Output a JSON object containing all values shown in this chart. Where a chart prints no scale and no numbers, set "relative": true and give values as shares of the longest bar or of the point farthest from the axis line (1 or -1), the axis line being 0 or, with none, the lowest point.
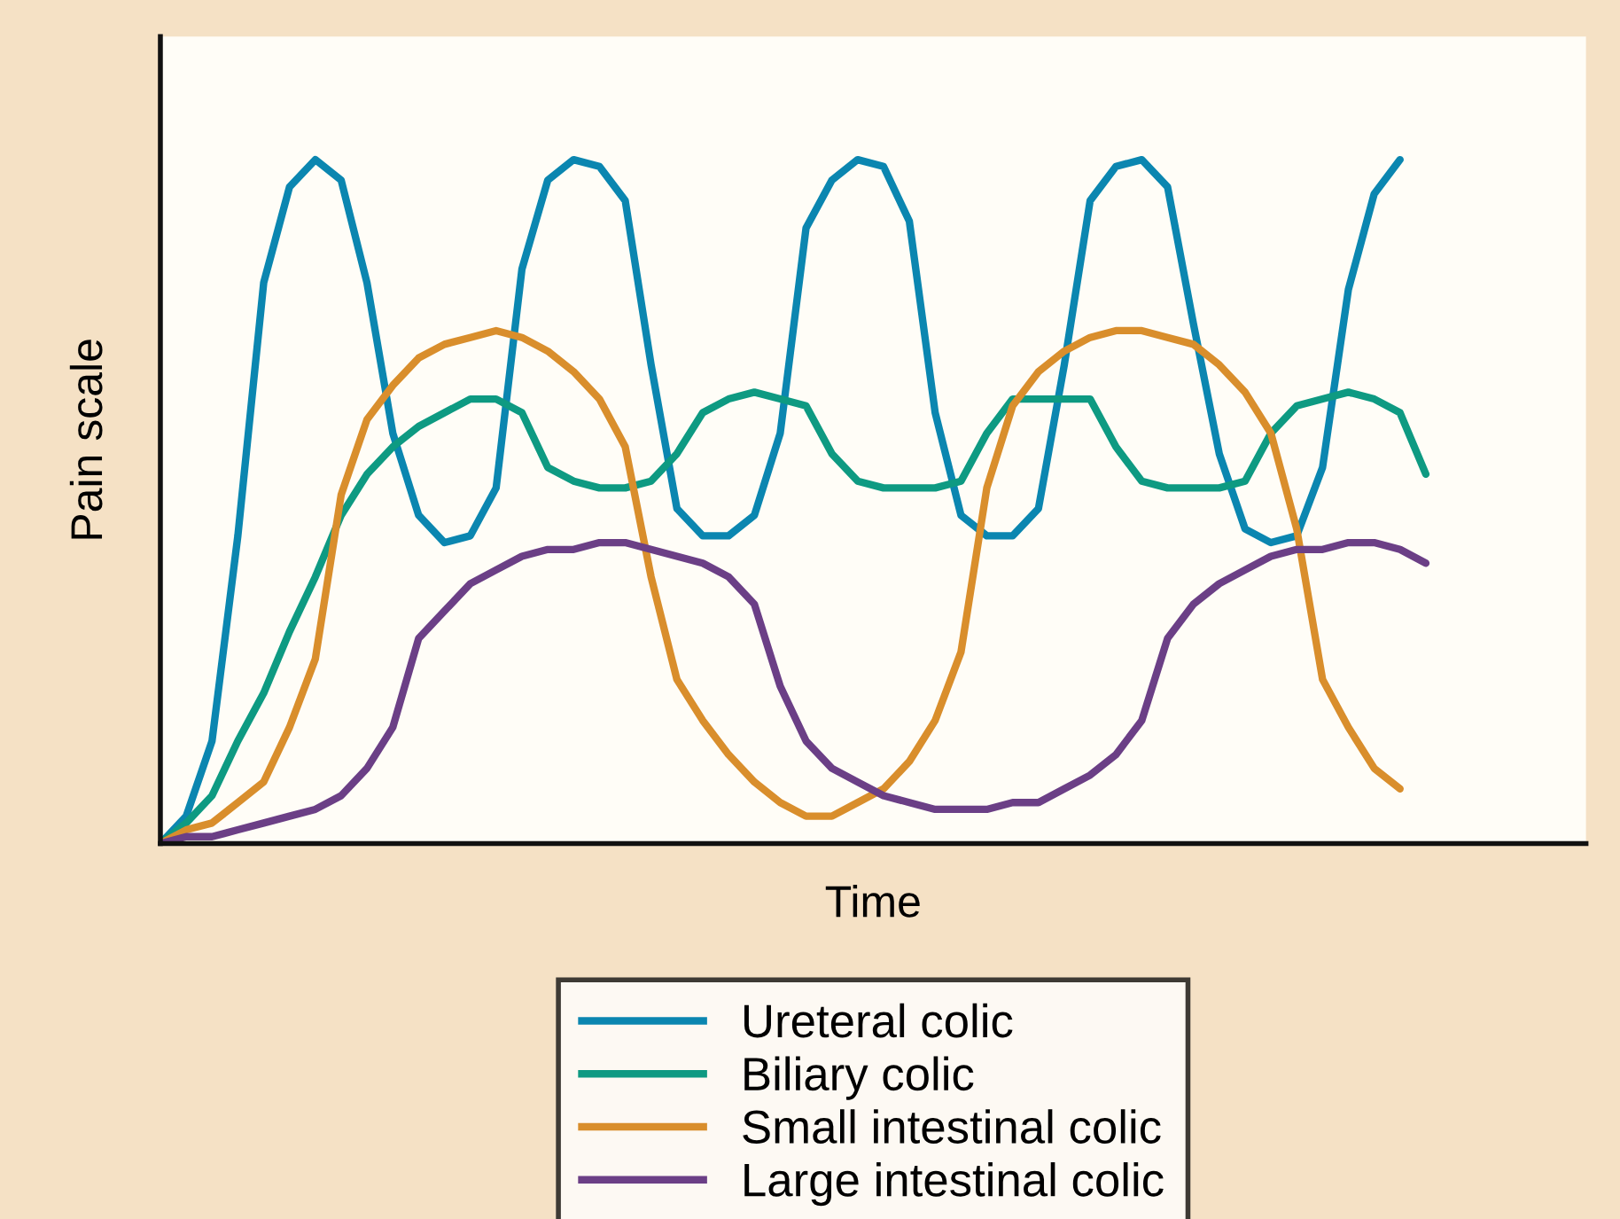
{
  "chart_data": {
    "type": "line",
    "relative": true,
    "xlabel": "Time",
    "ylabel": "Pain scale",
    "legend": "bottom",
    "grid": false,
    "marker": "none",
    "line_style": "solid",
    "categories": [
      null,
      null,
      null,
      null,
      null,
      null,
      null,
      null,
      null,
      null,
      null,
      null,
      null,
      null,
      null,
      null,
      null,
      null,
      null,
      null,
      null,
      null,
      null,
      null,
      null,
      null,
      null,
      null,
      null,
      null,
      null,
      null,
      null,
      null,
      null,
      null,
      null,
      null,
      null,
      null,
      null,
      null,
      null,
      null,
      null,
      null,
      null,
      null,
      null,
      null
    ],
    "series": [
      {
        "name": "Ureteral colic",
        "color": "#0b86b0",
        "values": [
          0,
          0.04,
          0.15,
          0.45,
          0.82,
          0.96,
          1,
          0.97,
          0.82,
          0.6,
          0.48,
          0.44,
          0.45,
          0.52,
          0.84,
          0.97,
          1,
          0.99,
          0.94,
          0.7,
          0.49,
          0.45,
          0.45,
          0.48,
          0.6,
          0.9,
          0.97,
          1,
          0.99,
          0.91,
          0.63,
          0.48,
          0.45,
          0.45,
          0.49,
          0.7,
          0.94,
          0.99,
          1,
          0.96,
          0.76,
          0.57,
          0.46,
          0.44,
          0.45,
          0.55,
          0.81,
          0.95,
          1,
          null
        ]
      },
      {
        "name": "Biliary colic",
        "color": "#0e9a82",
        "values": [
          0,
          0.03,
          0.07,
          0.15,
          0.22,
          0.31,
          0.39,
          0.48,
          0.54,
          0.58,
          0.61,
          0.63,
          0.65,
          0.65,
          0.63,
          0.55,
          0.53,
          0.52,
          0.52,
          0.53,
          0.57,
          0.63,
          0.65,
          0.66,
          0.65,
          0.64,
          0.57,
          0.53,
          0.52,
          0.52,
          0.52,
          0.53,
          0.6,
          0.65,
          0.65,
          0.65,
          0.65,
          0.58,
          0.53,
          0.52,
          0.52,
          0.52,
          0.53,
          0.6,
          0.64,
          0.65,
          0.66,
          0.65,
          0.63,
          0.54
        ]
      },
      {
        "name": "Small intestinal colic",
        "color": "#d98e2c",
        "values": [
          0,
          0.02,
          0.03,
          0.06,
          0.09,
          0.17,
          0.27,
          0.51,
          0.62,
          0.67,
          0.71,
          0.73,
          0.74,
          0.75,
          0.74,
          0.72,
          0.69,
          0.65,
          0.58,
          0.39,
          0.24,
          0.18,
          0.13,
          0.09,
          0.06,
          0.04,
          0.04,
          0.06,
          0.08,
          0.12,
          0.18,
          0.28,
          0.52,
          0.64,
          0.69,
          0.72,
          0.74,
          0.75,
          0.75,
          0.74,
          0.73,
          0.7,
          0.66,
          0.6,
          0.46,
          0.24,
          0.17,
          0.11,
          0.08,
          null
        ]
      },
      {
        "name": "Large intestinal colic",
        "color": "#6b3f86",
        "values": [
          0,
          0.01,
          0.01,
          0.02,
          0.03,
          0.04,
          0.05,
          0.07,
          0.11,
          0.17,
          0.3,
          0.34,
          0.38,
          0.4,
          0.42,
          0.43,
          0.43,
          0.44,
          0.44,
          0.43,
          0.42,
          0.41,
          0.39,
          0.35,
          0.23,
          0.15,
          0.11,
          0.09,
          0.07,
          0.06,
          0.05,
          0.05,
          0.05,
          0.06,
          0.06,
          0.08,
          0.1,
          0.13,
          0.18,
          0.3,
          0.35,
          0.38,
          0.4,
          0.42,
          0.43,
          0.43,
          0.44,
          0.44,
          0.43,
          0.41
        ]
      }
    ]
  }
}
